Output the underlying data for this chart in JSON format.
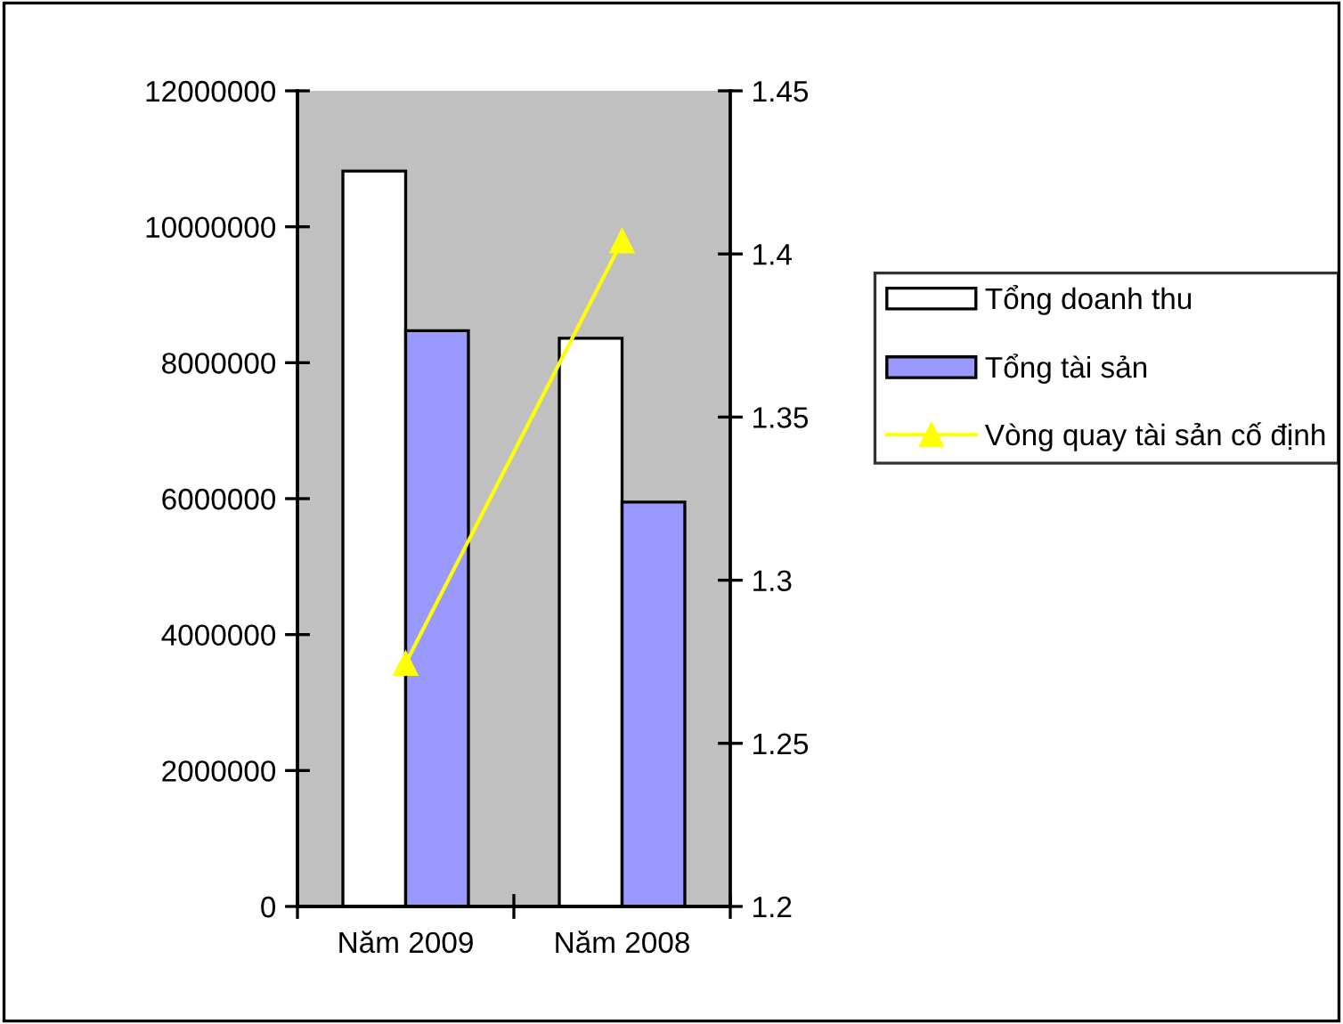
{
  "chart_data": {
    "type": "bar",
    "categories": [
      "Năm 2009",
      "Năm 2008"
    ],
    "series": [
      {
        "name": "Tổng doanh thu",
        "color": "#ffffff",
        "values": [
          10820000,
          8360000
        ]
      },
      {
        "name": "Tổng tài sản",
        "color": "#9999ff",
        "values": [
          8470000,
          5950000
        ]
      },
      {
        "name": "Vòng quay tài sản cố định",
        "type": "line",
        "axis": "y2",
        "color": "#ffff00",
        "marker": "triangle",
        "values": [
          1.2745,
          1.404
        ]
      }
    ],
    "ylim": [
      0,
      12000000
    ],
    "yticks": [
      0,
      2000000,
      4000000,
      6000000,
      8000000,
      10000000,
      12000000
    ],
    "y2lim": [
      1.2,
      1.45
    ],
    "y2ticks": [
      1.2,
      1.25,
      1.3,
      1.35,
      1.4,
      1.45
    ],
    "grid": false,
    "legend": "right"
  }
}
